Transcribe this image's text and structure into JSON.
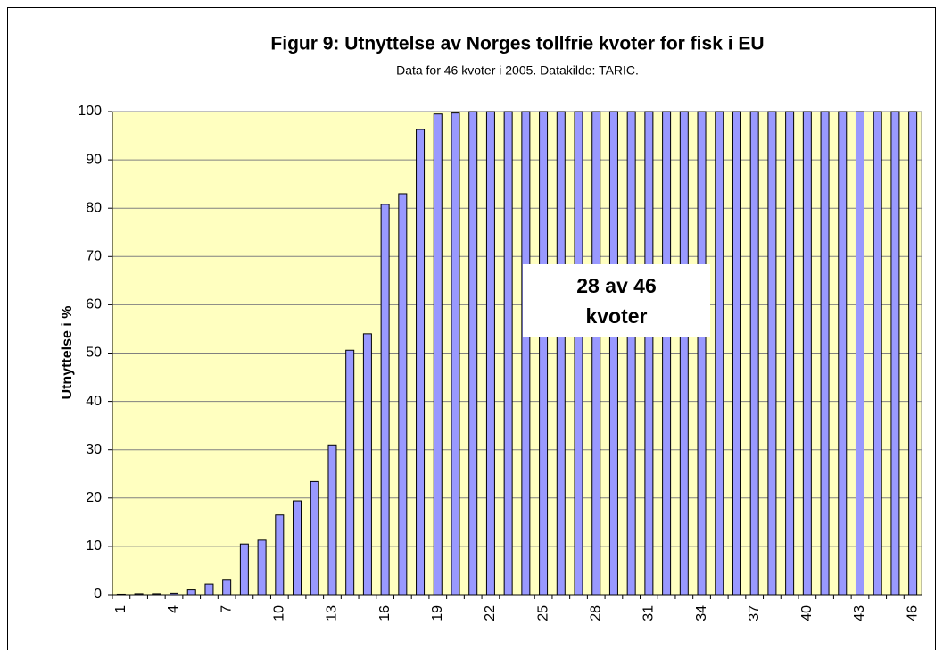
{
  "chart_data": {
    "type": "bar",
    "title": "Figur 9: Utnyttelse av Norges tollfrie kvoter for fisk i EU",
    "subtitle": "Data for 46 kvoter i 2005. Datakilde: TARIC.",
    "y_label": "Utnyttelse i %",
    "annotation": [
      "28 av 46",
      "kvoter"
    ],
    "categories": [
      "1",
      null,
      null,
      "4",
      null,
      null,
      "7",
      null,
      null,
      "10",
      null,
      null,
      "13",
      null,
      null,
      "16",
      null,
      null,
      "19",
      null,
      null,
      "22",
      null,
      null,
      "25",
      null,
      null,
      "28",
      null,
      null,
      "31",
      null,
      null,
      "34",
      null,
      null,
      "37",
      null,
      null,
      "40",
      null,
      null,
      "43",
      null,
      null,
      "46"
    ],
    "values": [
      0.1,
      0.2,
      0.2,
      0.3,
      1,
      2.2,
      3,
      10.5,
      11.3,
      16.5,
      19.4,
      23.4,
      31,
      50.6,
      54,
      80.8,
      83,
      96.3,
      99.5,
      99.7,
      100,
      100,
      100,
      100,
      100,
      100,
      100,
      100,
      100,
      100,
      100,
      100,
      100,
      100,
      100,
      100,
      100,
      100,
      100,
      100,
      100,
      100,
      100,
      100,
      100,
      100
    ],
    "color": "#9999ff",
    "plot_background": "#ffffc0",
    "ylim": [
      0,
      100
    ],
    "yticks": [
      0,
      10,
      20,
      30,
      40,
      50,
      60,
      70,
      80,
      90,
      100
    ],
    "grid": true
  }
}
